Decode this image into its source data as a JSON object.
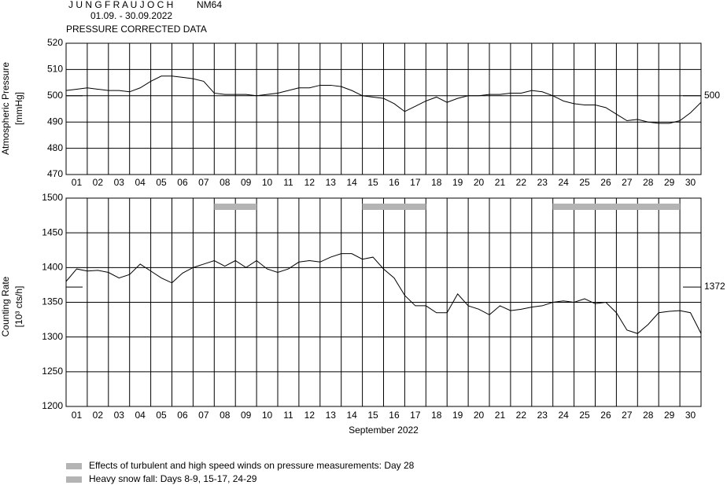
{
  "header": {
    "station": "J U N G F R A U J O C H",
    "detector": "NM64",
    "period": "01.09. - 30.09.2022",
    "subtitle": "PRESSURE CORRECTED DATA"
  },
  "chart_data": [
    {
      "type": "line",
      "y_label": [
        "Atmospheric Pressure",
        "[mmHg]"
      ],
      "categories": [
        "01",
        "02",
        "03",
        "04",
        "05",
        "06",
        "07",
        "08",
        "09",
        "10",
        "11",
        "12",
        "13",
        "14",
        "15",
        "16",
        "17",
        "18",
        "19",
        "20",
        "21",
        "22",
        "23",
        "24",
        "25",
        "26",
        "27",
        "28",
        "29",
        "30"
      ],
      "xlim": [
        0,
        30
      ],
      "ylim": [
        470,
        520
      ],
      "yticks": [
        470,
        480,
        490,
        500,
        510,
        520
      ],
      "reference": 500,
      "color": "#000000",
      "x": [
        0,
        0.5,
        1,
        1.5,
        2,
        2.5,
        3,
        3.5,
        4,
        4.5,
        5,
        5.5,
        6,
        6.5,
        7,
        7.5,
        8,
        8.5,
        9,
        9.5,
        10,
        10.5,
        11,
        11.5,
        12,
        12.5,
        13,
        13.5,
        14,
        14.5,
        15,
        15.5,
        16,
        16.5,
        17,
        17.5,
        18,
        18.5,
        19,
        19.5,
        20,
        20.5,
        21,
        21.5,
        22,
        22.5,
        23,
        23.5,
        24,
        24.5,
        25,
        25.5,
        26,
        26.5,
        27,
        27.5,
        28,
        28.5,
        29,
        29.5,
        30
      ],
      "values": [
        502,
        502.5,
        503,
        502.5,
        502,
        502,
        501.5,
        503,
        505.5,
        507.5,
        507.5,
        507,
        506.5,
        505.5,
        501,
        500.5,
        500.5,
        500.5,
        500,
        500.5,
        501,
        502,
        503,
        503,
        504,
        504,
        503.5,
        502,
        500,
        499.5,
        499,
        497,
        494,
        496,
        498,
        499.5,
        497.5,
        499,
        500,
        500,
        500.5,
        500.5,
        501,
        501,
        502,
        501.5,
        500,
        498,
        497,
        496.5,
        496.5,
        495.5,
        493,
        490.5,
        491,
        490,
        489.5,
        489.5,
        490.5,
        493.5,
        497.5
      ]
    },
    {
      "type": "line",
      "y_label": [
        "Counting Rate",
        "[10³ cts/h]"
      ],
      "x_label": "September 2022",
      "categories": [
        "01",
        "02",
        "03",
        "04",
        "05",
        "06",
        "07",
        "08",
        "09",
        "10",
        "11",
        "12",
        "13",
        "14",
        "15",
        "16",
        "17",
        "18",
        "19",
        "20",
        "21",
        "22",
        "23",
        "24",
        "25",
        "26",
        "27",
        "28",
        "29",
        "30"
      ],
      "xlim": [
        0,
        30
      ],
      "ylim": [
        1200,
        1500
      ],
      "yticks": [
        1200,
        1250,
        1300,
        1350,
        1400,
        1450,
        1500
      ],
      "reference": 1372,
      "color": "#000000",
      "shade_color": "#b4b4b4",
      "shaded_periods": [
        [
          7,
          9
        ],
        [
          14,
          17
        ],
        [
          23,
          29
        ]
      ],
      "x": [
        0,
        0.5,
        1,
        1.5,
        2,
        2.5,
        3,
        3.5,
        4,
        4.5,
        5,
        5.5,
        6,
        6.5,
        7,
        7.5,
        8,
        8.5,
        9,
        9.5,
        10,
        10.5,
        11,
        11.5,
        12,
        12.5,
        13,
        13.5,
        14,
        14.5,
        15,
        15.5,
        16,
        16.5,
        17,
        17.5,
        18,
        18.5,
        19,
        19.5,
        20,
        20.5,
        21,
        21.5,
        22,
        22.5,
        23,
        23.5,
        24,
        24.5,
        25,
        25.5,
        26,
        26.5,
        27,
        27.5,
        28,
        28.5,
        29,
        29.5,
        30
      ],
      "values": [
        1380,
        1398,
        1395,
        1396,
        1393,
        1385,
        1390,
        1405,
        1395,
        1385,
        1378,
        1392,
        1400,
        1405,
        1410,
        1402,
        1410,
        1400,
        1410,
        1398,
        1393,
        1398,
        1408,
        1410,
        1408,
        1415,
        1420,
        1420,
        1412,
        1415,
        1398,
        1385,
        1360,
        1345,
        1345,
        1335,
        1335,
        1362,
        1345,
        1340,
        1332,
        1345,
        1338,
        1340,
        1343,
        1345,
        1350,
        1352,
        1350,
        1355,
        1348,
        1350,
        1335,
        1310,
        1305,
        1318,
        1335,
        1337,
        1338,
        1335,
        1305
      ]
    }
  ],
  "legend": [
    "Effects of turbulent and high speed winds on pressure measurements: Day 28",
    "Heavy snow fall: Days 8-9, 15-17, 24-29"
  ]
}
